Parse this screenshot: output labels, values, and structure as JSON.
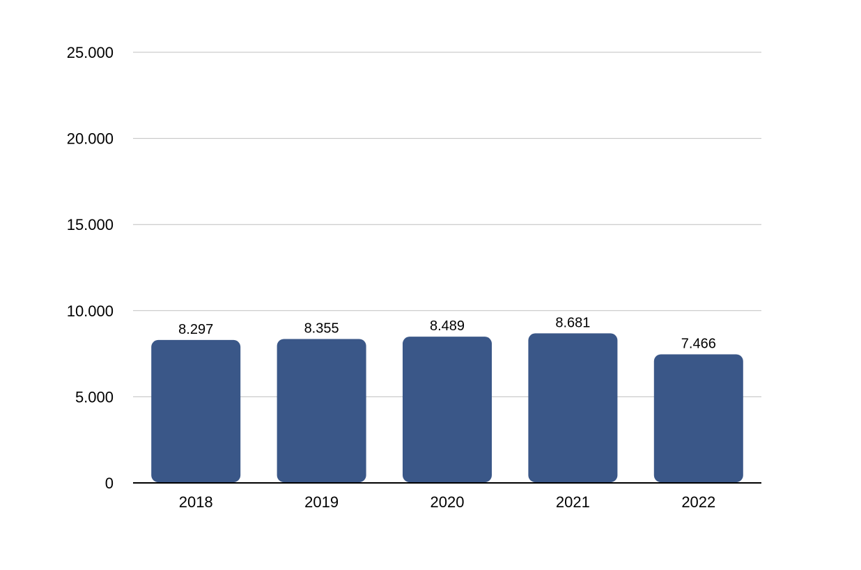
{
  "chart_data": {
    "type": "bar",
    "categories": [
      "2018",
      "2019",
      "2020",
      "2021",
      "2022"
    ],
    "values": [
      8297,
      8355,
      8489,
      8681,
      7466
    ],
    "value_labels": [
      "8.297",
      "8.355",
      "8.489",
      "8.681",
      "7.466"
    ],
    "y_ticks": [
      0,
      5000,
      10000,
      15000,
      20000,
      25000
    ],
    "y_tick_labels": [
      "0",
      "5.000",
      "10.000",
      "15.000",
      "20.000",
      "25.000"
    ],
    "ylim": [
      0,
      25000
    ],
    "grid": true,
    "legend": "none",
    "title": "",
    "xlabel": "",
    "ylabel": "",
    "colors": {
      "bar": "#3a5788",
      "grid": "#bfbfbf",
      "axis": "#000000"
    }
  }
}
